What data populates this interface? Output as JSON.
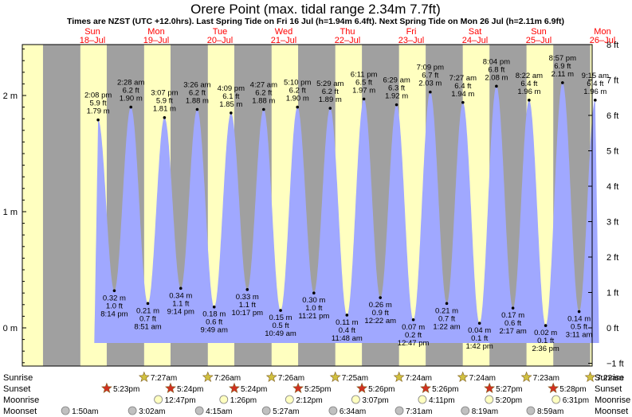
{
  "title": "Orere Point (max. tidal range 2.34m 7.7ft)",
  "subtitle": "Times are NZST (UTC +12.0hrs). Last Spring Tide on Fri 16 Jul (h=1.94m 6.4ft). Next Spring Tide on Mon 26 Jul (h=2.11m 6.9ft)",
  "colors": {
    "day": "#ffffc0",
    "night": "#a0a0a0",
    "tide": "#a0a8ff",
    "day_label": "#ff0000",
    "sun_star": "#d0c040",
    "sunset_star": "#d03020",
    "moon": "#ffffc0"
  },
  "days": [
    {
      "dow": "Sun",
      "date": "18–Jul"
    },
    {
      "dow": "Mon",
      "date": "19–Jul"
    },
    {
      "dow": "Tue",
      "date": "20–Jul"
    },
    {
      "dow": "Wed",
      "date": "21–Jul"
    },
    {
      "dow": "Thu",
      "date": "22–Jul"
    },
    {
      "dow": "Fri",
      "date": "23–Jul"
    },
    {
      "dow": "Sat",
      "date": "24–Jul"
    },
    {
      "dow": "Sun",
      "date": "25–Jul"
    },
    {
      "dow": "Mon",
      "date": "26–Jul"
    }
  ],
  "row_labels": {
    "sunrise": "Sunrise",
    "sunset": "Sunset",
    "moonrise": "Moonrise",
    "moonset": "Moonset"
  },
  "chart_data": {
    "type": "area",
    "ylabel_left_unit": "m",
    "ylabel_right_unit": "ft",
    "left_ticks": [
      "2 m",
      "1 m",
      "0 m"
    ],
    "right_ticks": [
      "8 ft",
      "7 ft",
      "6 ft",
      "5 ft",
      "4 ft",
      "3 ft",
      "2 ft",
      "1 ft",
      "0 ft",
      "−1 ft"
    ],
    "x_start": "18-Jul 00:00",
    "tides": [
      {
        "type": "high",
        "time": "2:08 pm",
        "h_m": 1.79,
        "ft": "5.9 ft"
      },
      {
        "type": "low",
        "time": "8:14 pm",
        "h_m": 0.32,
        "ft": "1.0 ft"
      },
      {
        "type": "high",
        "time": "2:28 am",
        "h_m": 1.9,
        "ft": "6.2 ft"
      },
      {
        "type": "low",
        "time": "8:51 am",
        "h_m": 0.21,
        "ft": "0.7 ft"
      },
      {
        "type": "high",
        "time": "3:07 pm",
        "h_m": 1.81,
        "ft": "5.9 ft"
      },
      {
        "type": "low",
        "time": "9:14 pm",
        "h_m": 0.34,
        "ft": "1.1 ft"
      },
      {
        "type": "high",
        "time": "3:26 am",
        "h_m": 1.88,
        "ft": "6.2 ft"
      },
      {
        "type": "low",
        "time": "9:49 am",
        "h_m": 0.18,
        "ft": "0.6 ft"
      },
      {
        "type": "high",
        "time": "4:09 pm",
        "h_m": 1.85,
        "ft": "6.1 ft"
      },
      {
        "type": "low",
        "time": "10:17 pm",
        "h_m": 0.33,
        "ft": "1.1 ft"
      },
      {
        "type": "high",
        "time": "4:27 am",
        "h_m": 1.88,
        "ft": "6.2 ft"
      },
      {
        "type": "low",
        "time": "10:49 am",
        "h_m": 0.15,
        "ft": "0.5 ft"
      },
      {
        "type": "high",
        "time": "5:10 pm",
        "h_m": 1.9,
        "ft": "6.2 ft"
      },
      {
        "type": "low",
        "time": "11:21 pm",
        "h_m": 0.3,
        "ft": "1.0 ft"
      },
      {
        "type": "high",
        "time": "5:29 am",
        "h_m": 1.89,
        "ft": "6.2 ft"
      },
      {
        "type": "low",
        "time": "11:48 am",
        "h_m": 0.11,
        "ft": "0.4 ft"
      },
      {
        "type": "high",
        "time": "6:11 pm",
        "h_m": 1.97,
        "ft": "6.5 ft"
      },
      {
        "type": "low",
        "time": "12:22 am",
        "h_m": 0.26,
        "ft": "0.9 ft"
      },
      {
        "type": "high",
        "time": "6:29 am",
        "h_m": 1.92,
        "ft": "6.3 ft"
      },
      {
        "type": "low",
        "time": "12:47 pm",
        "h_m": 0.07,
        "ft": "0.2 ft"
      },
      {
        "type": "high",
        "time": "7:09 pm",
        "h_m": 2.03,
        "ft": "6.7 ft"
      },
      {
        "type": "low",
        "time": "1:22 am",
        "h_m": 0.21,
        "ft": "0.7 ft"
      },
      {
        "type": "high",
        "time": "7:27 am",
        "h_m": 1.94,
        "ft": "6.4 ft"
      },
      {
        "type": "low",
        "time": "1:42 pm",
        "h_m": 0.04,
        "ft": "0.1 ft"
      },
      {
        "type": "high",
        "time": "8:04 pm",
        "h_m": 2.08,
        "ft": "6.8 ft"
      },
      {
        "type": "low",
        "time": "2:17 am",
        "h_m": 0.17,
        "ft": "0.6 ft"
      },
      {
        "type": "high",
        "time": "8:22 am",
        "h_m": 1.96,
        "ft": "6.4 ft"
      },
      {
        "type": "low",
        "time": "2:36 pm",
        "h_m": 0.02,
        "ft": "0.1 ft"
      },
      {
        "type": "high",
        "time": "8:57 pm",
        "h_m": 2.11,
        "ft": "6.9 ft"
      },
      {
        "type": "low",
        "time": "3:11 am",
        "h_m": 0.14,
        "ft": "0.5 ft"
      },
      {
        "type": "high",
        "time": "9:15 am",
        "h_m": 1.96,
        "ft": "6.4 ft"
      }
    ],
    "sunrise": [
      "7:27am",
      "7:26am",
      "7:26am",
      "7:25am",
      "7:24am",
      "7:24am",
      "7:23am",
      "7:22am"
    ],
    "sunset": [
      "5:23pm",
      "5:24pm",
      "5:24pm",
      "5:25pm",
      "5:26pm",
      "5:26pm",
      "5:27pm",
      "5:28pm"
    ],
    "moonrise": [
      "12:47pm",
      "1:26pm",
      "2:12pm",
      "3:07pm",
      "4:11pm",
      "5:20pm",
      "6:31pm"
    ],
    "moonset": [
      "1:50am",
      "3:02am",
      "4:15am",
      "5:27am",
      "6:34am",
      "7:31am",
      "8:19am",
      "8:59am"
    ]
  }
}
